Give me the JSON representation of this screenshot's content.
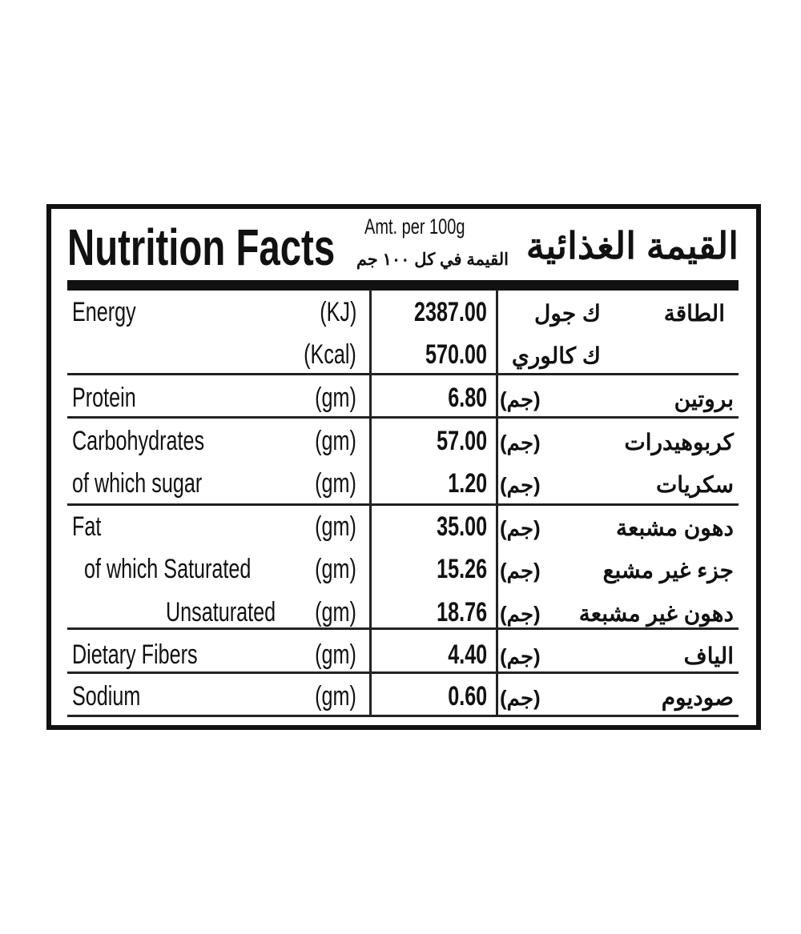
{
  "header": {
    "title": "Nutrition Facts",
    "amount": "Amt. per 100g",
    "amount_ar": "القيمة في كل ١٠٠ جم",
    "title_ar": "القيمة الغذائية"
  },
  "energy": {
    "label": "Energy",
    "label_ar": "الطاقة",
    "kj_unit": "(KJ)",
    "kj_value": "2387.00",
    "kj_unit_ar": "ك جول",
    "kcal_unit": "(Kcal)",
    "kcal_value": "570.00",
    "kcal_unit_ar": "ك كالوري"
  },
  "rows": [
    {
      "label": "Protein",
      "unit": "(gm)",
      "value": "6.80",
      "unit_ar": "(جم)",
      "label_ar": "بروتين"
    },
    {
      "label": "Carbohydrates",
      "unit": "(gm)",
      "value": "57.00",
      "unit_ar": "(جم)",
      "label_ar": "كربوهيدرات"
    },
    {
      "label": "of which sugar",
      "unit": "(gm)",
      "value": "1.20",
      "unit_ar": "(جم)",
      "label_ar": "سكريات"
    },
    {
      "label": "Fat",
      "unit": "(gm)",
      "value": "35.00",
      "unit_ar": "(جم)",
      "label_ar": "دهون مشبعة"
    },
    {
      "label": "of which  Saturated",
      "unit": "(gm)",
      "value": "15.26",
      "unit_ar": "(جم)",
      "label_ar": "جزء غير مشبع"
    },
    {
      "label": "Unsaturated",
      "unit": "(gm)",
      "value": "18.76",
      "unit_ar": "(جم)",
      "label_ar": "دهون غير مشبعة"
    },
    {
      "label": "Dietary Fibers",
      "unit": "(gm)",
      "value": "4.40",
      "unit_ar": "(جم)",
      "label_ar": "الياف"
    },
    {
      "label": "Sodium",
      "unit": "(gm)",
      "value": "0.60",
      "unit_ar": "(جم)",
      "label_ar": "صوديوم"
    }
  ]
}
